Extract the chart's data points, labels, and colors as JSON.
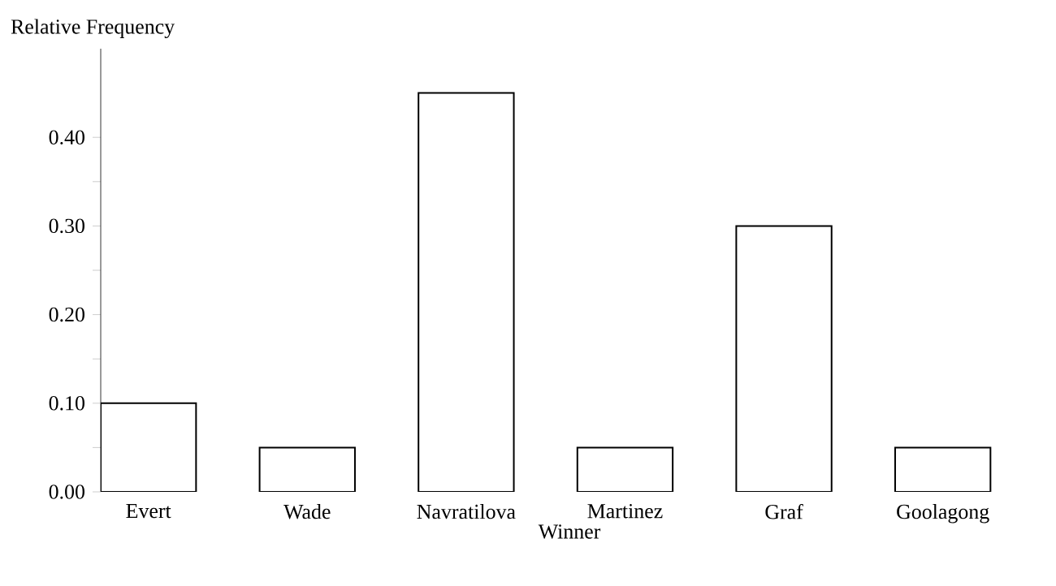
{
  "chart_data": {
    "type": "bar",
    "ylabel": "Relative Frequency",
    "xlabel": "Winner",
    "categories": [
      "Evert",
      "Wade",
      "Navratilova",
      "Martinez",
      "Graf",
      "Goolagong"
    ],
    "values": [
      0.1,
      0.05,
      0.45,
      0.05,
      0.3,
      0.05
    ],
    "color": "#ffffff",
    "ylim": [
      0,
      0.5
    ],
    "yticks": [
      {
        "value": 0,
        "label": "0.00"
      },
      {
        "value": 0.1,
        "label": "0.10"
      },
      {
        "value": 0.2,
        "label": "0.20"
      },
      {
        "value": 0.3,
        "label": "0.30"
      },
      {
        "value": 0.4,
        "label": "0.40"
      }
    ],
    "grid": false
  }
}
